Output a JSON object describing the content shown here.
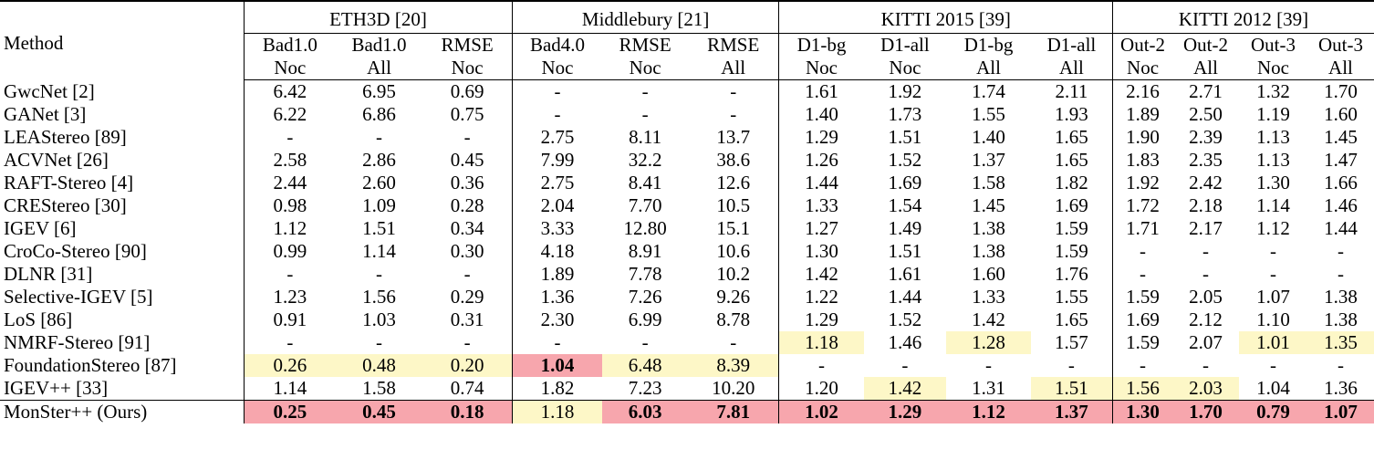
{
  "table": {
    "method_header": "Method",
    "groups": [
      {
        "label": "ETH3D [20]",
        "span": 3
      },
      {
        "label": "Middlebury [21]",
        "span": 3
      },
      {
        "label": "KITTI 2015 [39]",
        "span": 4
      },
      {
        "label": "KITTI 2012 [39]",
        "span": 4
      }
    ],
    "metrics": [
      "Bad1.0",
      "Bad1.0",
      "RMSE",
      "Bad4.0",
      "RMSE",
      "RMSE",
      "D1-bg",
      "D1-all",
      "D1-bg",
      "D1-all",
      "Out-2",
      "Out-2",
      "Out-3",
      "Out-3"
    ],
    "subsets": [
      "Noc",
      "All",
      "Noc",
      "Noc",
      "Noc",
      "All",
      "Noc",
      "Noc",
      "All",
      "All",
      "Noc",
      "All",
      "Noc",
      "All"
    ],
    "rows": [
      {
        "method": "GwcNet [2]",
        "values": [
          "6.42",
          "6.95",
          "0.69",
          "-",
          "-",
          "-",
          "1.61",
          "1.92",
          "1.74",
          "2.11",
          "2.16",
          "2.71",
          "1.32",
          "1.70"
        ]
      },
      {
        "method": "GANet [3]",
        "values": [
          "6.22",
          "6.86",
          "0.75",
          "-",
          "-",
          "-",
          "1.40",
          "1.73",
          "1.55",
          "1.93",
          "1.89",
          "2.50",
          "1.19",
          "1.60"
        ]
      },
      {
        "method": "LEAStereo [89]",
        "values": [
          "-",
          "-",
          "-",
          "2.75",
          "8.11",
          "13.7",
          "1.29",
          "1.51",
          "1.40",
          "1.65",
          "1.90",
          "2.39",
          "1.13",
          "1.45"
        ]
      },
      {
        "method": "ACVNet [26]",
        "values": [
          "2.58",
          "2.86",
          "0.45",
          "7.99",
          "32.2",
          "38.6",
          "1.26",
          "1.52",
          "1.37",
          "1.65",
          "1.83",
          "2.35",
          "1.13",
          "1.47"
        ]
      },
      {
        "method": "RAFT-Stereo [4]",
        "values": [
          "2.44",
          "2.60",
          "0.36",
          "2.75",
          "8.41",
          "12.6",
          "1.44",
          "1.69",
          "1.58",
          "1.82",
          "1.92",
          "2.42",
          "1.30",
          "1.66"
        ]
      },
      {
        "method": "CREStereo [30]",
        "values": [
          "0.98",
          "1.09",
          "0.28",
          "2.04",
          "7.70",
          "10.5",
          "1.33",
          "1.54",
          "1.45",
          "1.69",
          "1.72",
          "2.18",
          "1.14",
          "1.46"
        ]
      },
      {
        "method": "IGEV [6]",
        "values": [
          "1.12",
          "1.51",
          "0.34",
          "3.33",
          "12.80",
          "15.1",
          "1.27",
          "1.49",
          "1.38",
          "1.59",
          "1.71",
          "2.17",
          "1.12",
          "1.44"
        ]
      },
      {
        "method": "CroCo-Stereo [90]",
        "values": [
          "0.99",
          "1.14",
          "0.30",
          "4.18",
          "8.91",
          "10.6",
          "1.30",
          "1.51",
          "1.38",
          "1.59",
          "-",
          "-",
          "-",
          "-"
        ]
      },
      {
        "method": "DLNR [31]",
        "values": [
          "-",
          "-",
          "-",
          "1.89",
          "7.78",
          "10.2",
          "1.42",
          "1.61",
          "1.60",
          "1.76",
          "-",
          "-",
          "-",
          "-"
        ]
      },
      {
        "method": "Selective-IGEV [5]",
        "values": [
          "1.23",
          "1.56",
          "0.29",
          "1.36",
          "7.26",
          "9.26",
          "1.22",
          "1.44",
          "1.33",
          "1.55",
          "1.59",
          "2.05",
          "1.07",
          "1.38"
        ]
      },
      {
        "method": "LoS [86]",
        "values": [
          "0.91",
          "1.03",
          "0.31",
          "2.30",
          "6.99",
          "8.78",
          "1.29",
          "1.52",
          "1.42",
          "1.65",
          "1.69",
          "2.12",
          "1.10",
          "1.38"
        ]
      },
      {
        "method": "NMRF-Stereo [91]",
        "values": [
          "-",
          "-",
          "-",
          "-",
          "-",
          "-",
          "1.18",
          "1.46",
          "1.28",
          "1.57",
          "1.59",
          "2.07",
          "1.01",
          "1.35"
        ],
        "highlight": {
          "6": "y",
          "8": "y",
          "12": "y",
          "13": "y"
        }
      },
      {
        "method": "FoundationStereo [87]",
        "values": [
          "0.26",
          "0.48",
          "0.20",
          "1.04",
          "6.48",
          "8.39",
          "-",
          "-",
          "-",
          "-",
          "-",
          "-",
          "-",
          "-"
        ],
        "highlight": {
          "0": "y",
          "1": "y",
          "2": "y",
          "3": "rb",
          "4": "y",
          "5": "y"
        }
      },
      {
        "method": "IGEV++ [33]",
        "values": [
          "1.14",
          "1.58",
          "0.74",
          "1.82",
          "7.23",
          "10.20",
          "1.20",
          "1.42",
          "1.31",
          "1.51",
          "1.56",
          "2.03",
          "1.04",
          "1.36"
        ],
        "highlight": {
          "7": "y",
          "9": "y",
          "10": "y",
          "11": "y"
        }
      },
      {
        "method": "MonSter++ (Ours)",
        "values": [
          "0.25",
          "0.45",
          "0.18",
          "1.18",
          "6.03",
          "7.81",
          "1.02",
          "1.29",
          "1.12",
          "1.37",
          "1.30",
          "1.70",
          "0.79",
          "1.07"
        ],
        "highlight": {
          "0": "rb",
          "1": "rb",
          "2": "rb",
          "3": "y",
          "4": "rb",
          "5": "rb",
          "6": "rb",
          "7": "rb",
          "8": "rb",
          "9": "rb",
          "10": "rb",
          "11": "rb",
          "12": "rb",
          "13": "rb"
        }
      }
    ]
  }
}
